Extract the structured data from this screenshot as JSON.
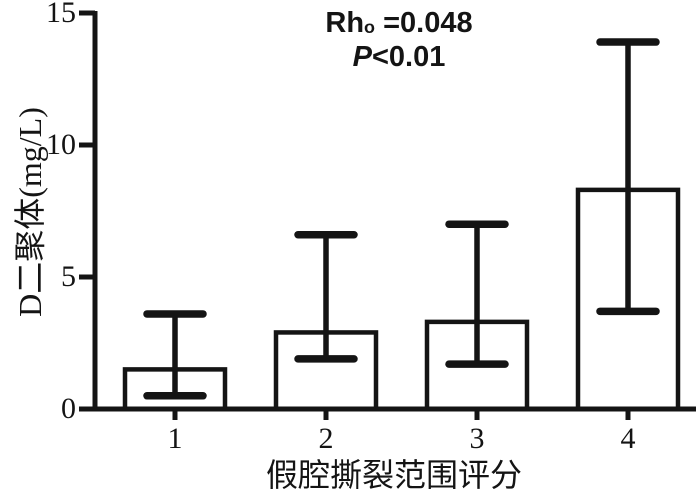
{
  "colors": {
    "ink": "#141414",
    "background": "#ffffff",
    "bar_fill": "#ffffff"
  },
  "annotation": {
    "rho_prefix": "Rh",
    "rho_sub": "o",
    "rho_eq": " =0.048",
    "p_prefix": "P",
    "p_rest": "<0.01"
  },
  "chart_data": {
    "type": "bar",
    "title": "",
    "categories": [
      "1",
      "2",
      "3",
      "4"
    ],
    "series": [
      {
        "name": "D-dimer",
        "values": [
          1.5,
          2.9,
          3.3,
          8.3
        ]
      }
    ],
    "error_upper": [
      3.6,
      6.6,
      7.0,
      13.9
    ],
    "error_lower": [
      0.5,
      1.9,
      1.7,
      3.7
    ],
    "xlabel": "假腔撕裂范围评分",
    "ylabel": "D二聚体(mg/L)",
    "ylim": [
      0,
      15
    ],
    "yticks": [
      0,
      5,
      10,
      15
    ],
    "annotations": [
      "Rho =0.048",
      "P<0.01"
    ],
    "grid": false,
    "legend_position": "none",
    "bar_fill": "#ffffff",
    "stroke": "#141414"
  }
}
